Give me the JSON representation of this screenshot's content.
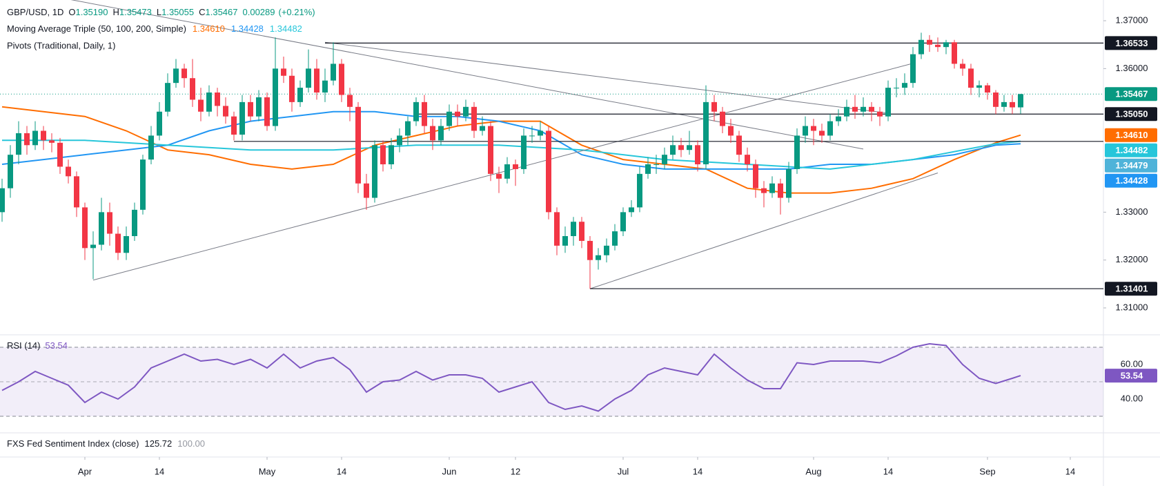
{
  "chart_data": [
    {
      "type": "candlestick",
      "legend": {
        "symbol": "GBP/USD, 1D",
        "ohlc": [
          {
            "label": "O",
            "value": "1.35190"
          },
          {
            "label": "H",
            "value": "1.35473"
          },
          {
            "label": "L",
            "value": "1.35055"
          },
          {
            "label": "C",
            "value": "1.35467"
          }
        ],
        "change": "0.00289",
        "change_pct": "(+0.21%)",
        "color": "#089981"
      },
      "up_color": "#089981",
      "down_color": "#f23645",
      "ohlc": [
        [
          1.33,
          1.337,
          1.328,
          1.335
        ],
        [
          1.335,
          1.344,
          1.333,
          1.342
        ],
        [
          1.342,
          1.349,
          1.34,
          1.3465
        ],
        [
          1.3465,
          1.348,
          1.342,
          1.344
        ],
        [
          1.344,
          1.349,
          1.343,
          1.347
        ],
        [
          1.347,
          1.348,
          1.343,
          1.345
        ],
        [
          1.345,
          1.3465,
          1.3425,
          1.3445
        ],
        [
          1.3445,
          1.3455,
          1.338,
          1.3395
        ],
        [
          1.3395,
          1.341,
          1.336,
          1.3375
        ],
        [
          1.3375,
          1.3385,
          1.329,
          1.331
        ],
        [
          1.331,
          1.332,
          1.32,
          1.3225
        ],
        [
          1.3225,
          1.326,
          1.316,
          1.3232
        ],
        [
          1.3232,
          1.333,
          1.322,
          1.33
        ],
        [
          1.33,
          1.332,
          1.323,
          1.3255
        ],
        [
          1.3255,
          1.327,
          1.32,
          1.3215
        ],
        [
          1.3215,
          1.327,
          1.32,
          1.325
        ],
        [
          1.325,
          1.332,
          1.324,
          1.3305
        ],
        [
          1.3305,
          1.342,
          1.3295,
          1.341
        ],
        [
          1.341,
          1.348,
          1.34,
          1.346
        ],
        [
          1.346,
          1.353,
          1.345,
          1.351
        ],
        [
          1.351,
          1.359,
          1.35,
          1.357
        ],
        [
          1.357,
          1.362,
          1.356,
          1.36
        ],
        [
          1.36,
          1.361,
          1.356,
          1.358
        ],
        [
          1.358,
          1.362,
          1.352,
          1.3535
        ],
        [
          1.3535,
          1.356,
          1.349,
          1.351
        ],
        [
          1.351,
          1.3565,
          1.35,
          1.355
        ],
        [
          1.355,
          1.356,
          1.35,
          1.3522
        ],
        [
          1.3522,
          1.354,
          1.3485,
          1.35
        ],
        [
          1.35,
          1.351,
          1.345,
          1.3462
        ],
        [
          1.3462,
          1.3545,
          1.345,
          1.353
        ],
        [
          1.353,
          1.3545,
          1.349,
          1.35
        ],
        [
          1.35,
          1.3555,
          1.349,
          1.354
        ],
        [
          1.354,
          1.355,
          1.347,
          1.348
        ],
        [
          1.348,
          1.3665,
          1.347,
          1.36
        ],
        [
          1.36,
          1.3625,
          1.357,
          1.3585
        ],
        [
          1.3585,
          1.36,
          1.351,
          1.353
        ],
        [
          1.353,
          1.3575,
          1.352,
          1.356
        ],
        [
          1.356,
          1.364,
          1.355,
          1.36
        ],
        [
          1.36,
          1.362,
          1.3535,
          1.355
        ],
        [
          1.355,
          1.36,
          1.353,
          1.3575
        ],
        [
          1.3575,
          1.3655,
          1.3565,
          1.361
        ],
        [
          1.361,
          1.362,
          1.353,
          1.3545
        ],
        [
          1.3545,
          1.356,
          1.349,
          1.352
        ],
        [
          1.352,
          1.353,
          1.334,
          1.336
        ],
        [
          1.336,
          1.338,
          1.3305,
          1.333
        ],
        [
          1.333,
          1.345,
          1.332,
          1.344
        ],
        [
          1.344,
          1.345,
          1.3385,
          1.34
        ],
        [
          1.34,
          1.3455,
          1.339,
          1.344
        ],
        [
          1.344,
          1.3475,
          1.3425,
          1.346
        ],
        [
          1.346,
          1.35,
          1.344,
          1.349
        ],
        [
          1.349,
          1.354,
          1.348,
          1.353
        ],
        [
          1.353,
          1.3545,
          1.3465,
          1.348
        ],
        [
          1.348,
          1.3495,
          1.343,
          1.345
        ],
        [
          1.345,
          1.3495,
          1.344,
          1.348
        ],
        [
          1.348,
          1.3525,
          1.347,
          1.351
        ],
        [
          1.351,
          1.3525,
          1.348,
          1.35
        ],
        [
          1.35,
          1.3535,
          1.349,
          1.352
        ],
        [
          1.352,
          1.353,
          1.3455,
          1.347
        ],
        [
          1.347,
          1.35,
          1.346,
          1.348
        ],
        [
          1.348,
          1.349,
          1.3365,
          1.338
        ],
        [
          1.338,
          1.3395,
          1.334,
          1.337
        ],
        [
          1.337,
          1.3415,
          1.336,
          1.34
        ],
        [
          1.34,
          1.341,
          1.3355,
          1.339
        ],
        [
          1.339,
          1.3475,
          1.338,
          1.346
        ],
        [
          1.346,
          1.348,
          1.3445,
          1.346
        ],
        [
          1.346,
          1.349,
          1.345,
          1.347
        ],
        [
          1.347,
          1.348,
          1.3285,
          1.33
        ],
        [
          1.33,
          1.331,
          1.321,
          1.323
        ],
        [
          1.323,
          1.327,
          1.3215,
          1.325
        ],
        [
          1.325,
          1.329,
          1.323,
          1.328
        ],
        [
          1.328,
          1.329,
          1.3225,
          1.324
        ],
        [
          1.324,
          1.325,
          1.314,
          1.32
        ],
        [
          1.32,
          1.3225,
          1.318,
          1.321
        ],
        [
          1.321,
          1.3245,
          1.3195,
          1.323
        ],
        [
          1.323,
          1.3275,
          1.322,
          1.326
        ],
        [
          1.326,
          1.331,
          1.325,
          1.33
        ],
        [
          1.33,
          1.3325,
          1.329,
          1.331
        ],
        [
          1.331,
          1.3395,
          1.33,
          1.338
        ],
        [
          1.338,
          1.3415,
          1.337,
          1.34
        ],
        [
          1.34,
          1.342,
          1.338,
          1.34
        ],
        [
          1.34,
          1.3435,
          1.339,
          1.342
        ],
        [
          1.342,
          1.346,
          1.341,
          1.344
        ],
        [
          1.344,
          1.3455,
          1.3415,
          1.343
        ],
        [
          1.343,
          1.347,
          1.342,
          1.344
        ],
        [
          1.344,
          1.345,
          1.3385,
          1.34
        ],
        [
          1.34,
          1.3565,
          1.339,
          1.353
        ],
        [
          1.353,
          1.3545,
          1.349,
          1.351
        ],
        [
          1.351,
          1.352,
          1.3465,
          1.348
        ],
        [
          1.348,
          1.3495,
          1.3445,
          1.346
        ],
        [
          1.346,
          1.347,
          1.3405,
          1.342
        ],
        [
          1.342,
          1.3435,
          1.3385,
          1.34
        ],
        [
          1.34,
          1.341,
          1.333,
          1.335
        ],
        [
          1.335,
          1.3365,
          1.331,
          1.334
        ],
        [
          1.334,
          1.3375,
          1.333,
          1.336
        ],
        [
          1.336,
          1.337,
          1.3295,
          1.333
        ],
        [
          1.333,
          1.3405,
          1.332,
          1.339
        ],
        [
          1.339,
          1.3475,
          1.338,
          1.346
        ],
        [
          1.346,
          1.35,
          1.3445,
          1.348
        ],
        [
          1.348,
          1.3495,
          1.344,
          1.347
        ],
        [
          1.347,
          1.3485,
          1.3445,
          1.346
        ],
        [
          1.346,
          1.3505,
          1.345,
          1.349
        ],
        [
          1.349,
          1.3515,
          1.348,
          1.35
        ],
        [
          1.35,
          1.3535,
          1.349,
          1.352
        ],
        [
          1.352,
          1.3545,
          1.3495,
          1.351
        ],
        [
          1.351,
          1.354,
          1.35,
          1.352
        ],
        [
          1.352,
          1.353,
          1.349,
          1.351
        ],
        [
          1.351,
          1.352,
          1.348,
          1.35
        ],
        [
          1.35,
          1.3575,
          1.349,
          1.356
        ],
        [
          1.356,
          1.358,
          1.354,
          1.356
        ],
        [
          1.356,
          1.359,
          1.3545,
          1.357
        ],
        [
          1.357,
          1.3645,
          1.356,
          1.363
        ],
        [
          1.363,
          1.3675,
          1.362,
          1.366
        ],
        [
          1.366,
          1.367,
          1.3635,
          1.365
        ],
        [
          1.365,
          1.3665,
          1.3635,
          1.3645
        ],
        [
          1.3645,
          1.366,
          1.363,
          1.3655
        ],
        [
          1.3655,
          1.366,
          1.36,
          1.361
        ],
        [
          1.361,
          1.362,
          1.3585,
          1.36
        ],
        [
          1.36,
          1.361,
          1.3545,
          1.356
        ],
        [
          1.356,
          1.3575,
          1.354,
          1.3565
        ],
        [
          1.3565,
          1.357,
          1.3535,
          1.355
        ],
        [
          1.355,
          1.3555,
          1.3505,
          1.352
        ],
        [
          1.352,
          1.3545,
          1.351,
          1.353
        ],
        [
          1.353,
          1.3545,
          1.3505,
          1.3519
        ],
        [
          1.3519,
          1.35473,
          1.35055,
          1.35467
        ]
      ],
      "ylim": [
        1.30452,
        1.37433
      ],
      "yticks": [
        {
          "value": 1.37,
          "label": "1.37000"
        },
        {
          "value": 1.36,
          "label": "1.36000"
        },
        {
          "value": 1.33,
          "label": "1.33000"
        },
        {
          "value": 1.32,
          "label": "1.32000"
        },
        {
          "value": 1.31,
          "label": "1.31000"
        }
      ],
      "grid": false,
      "xticks": [
        {
          "value": 10,
          "label": "Apr"
        },
        {
          "value": 19,
          "label": "14"
        },
        {
          "value": 32,
          "label": "May"
        },
        {
          "value": 41,
          "label": "14"
        },
        {
          "value": 54,
          "label": "Jun"
        },
        {
          "value": 62,
          "label": "12"
        },
        {
          "value": 75,
          "label": "Jul"
        },
        {
          "value": 84,
          "label": "14"
        },
        {
          "value": 98,
          "label": "Aug"
        },
        {
          "value": 107,
          "label": "14"
        },
        {
          "value": 119,
          "label": "Sep"
        },
        {
          "value": 129,
          "label": "14"
        }
      ],
      "moving_averages": {
        "title": "Moving Average Triple (50, 100, 200, Simple)",
        "series": [
          {
            "color": "#ff6d00",
            "value_label": "1.34610",
            "x": [
              0,
              5,
              10,
              15,
              20,
              25,
              30,
              35,
              40,
              45,
              50,
              55,
              60,
              65,
              70,
              75,
              80,
              85,
              90,
              95,
              100,
              105,
              110,
              115,
              120,
              123
            ],
            "values": [
              1.352,
              1.351,
              1.35,
              1.347,
              1.343,
              1.342,
              1.34,
              1.339,
              1.34,
              1.344,
              1.346,
              1.348,
              1.349,
              1.349,
              1.344,
              1.341,
              1.34,
              1.339,
              1.335,
              1.334,
              1.334,
              1.335,
              1.337,
              1.341,
              1.3445,
              1.3461
            ]
          },
          {
            "color": "#2196f3",
            "value_label": "1.34428",
            "x": [
              0,
              5,
              10,
              15,
              20,
              25,
              30,
              35,
              40,
              45,
              50,
              55,
              60,
              65,
              70,
              75,
              80,
              85,
              90,
              95,
              100,
              105,
              110,
              115,
              120,
              123
            ],
            "values": [
              1.34,
              1.341,
              1.342,
              1.343,
              1.344,
              1.347,
              1.349,
              1.35,
              1.351,
              1.351,
              1.35,
              1.35,
              1.349,
              1.347,
              1.342,
              1.34,
              1.339,
              1.339,
              1.339,
              1.339,
              1.34,
              1.34,
              1.341,
              1.342,
              1.344,
              1.34428
            ]
          },
          {
            "color": "#26c6da",
            "value_label": "1.34482",
            "x": [
              0,
              10,
              20,
              30,
              40,
              50,
              60,
              70,
              80,
              90,
              100,
              110,
              120,
              123
            ],
            "values": [
              1.345,
              1.345,
              1.344,
              1.343,
              1.343,
              1.344,
              1.344,
              1.343,
              1.341,
              1.34,
              1.339,
              1.341,
              1.3443,
              1.34482
            ]
          }
        ]
      },
      "pivots_title": "Pivots (Traditional, Daily, 1)",
      "trend_lines": [
        {
          "from": [
            8,
            1.3745
          ],
          "to": [
            104,
            1.3432
          ]
        },
        {
          "from": [
            39,
            1.3655
          ],
          "to": [
            107,
            1.3507
          ]
        },
        {
          "from": [
            11,
            1.3158
          ],
          "to": [
            110,
            1.3611
          ]
        },
        {
          "from": [
            71,
            1.314
          ],
          "to": [
            113,
            1.3382
          ]
        }
      ],
      "levels": [
        {
          "value": 1.36533,
          "label": "1.36533",
          "color": "#131722",
          "start": 39
        },
        {
          "value": 1.35467,
          "label": "1.35467",
          "color": "#089981",
          "dotted": true
        },
        {
          "value": 1.3505,
          "label": "1.35050",
          "color": "#131722",
          "start": 50
        },
        {
          "value": 1.3461,
          "label": "1.34610",
          "color": "#ff6d00"
        },
        {
          "value": 1.34482,
          "label": "1.34482",
          "color": "#26c6da"
        },
        {
          "value": 1.34479,
          "label": "1.34479",
          "color": "#4fb3d9",
          "start": 28
        },
        {
          "value": 1.34428,
          "label": "1.34428",
          "color": "#2196f3"
        },
        {
          "value": 1.31401,
          "label": "1.31401",
          "color": "#131722",
          "start": 71
        }
      ]
    },
    {
      "type": "line",
      "title": "RSI (14)",
      "last_value": 53.54,
      "color": "#7e57c2",
      "x": [
        0,
        2,
        4,
        6,
        8,
        10,
        12,
        14,
        16,
        18,
        20,
        22,
        24,
        26,
        28,
        30,
        32,
        34,
        36,
        38,
        40,
        42,
        44,
        46,
        48,
        50,
        52,
        54,
        56,
        58,
        60,
        62,
        64,
        66,
        68,
        70,
        72,
        74,
        76,
        78,
        80,
        82,
        84,
        86,
        88,
        90,
        92,
        94,
        96,
        98,
        100,
        102,
        104,
        106,
        108,
        110,
        112,
        114,
        116,
        118,
        120,
        122,
        123
      ],
      "values": [
        45,
        50,
        56,
        52,
        48,
        38,
        44,
        40,
        47,
        58,
        62,
        66,
        62,
        63,
        60,
        63,
        58,
        66,
        58,
        62,
        64,
        57,
        44,
        50,
        51,
        56,
        51,
        54,
        54,
        52,
        44,
        47,
        50,
        38,
        34,
        36,
        33,
        40,
        45,
        54,
        58,
        56,
        54,
        66,
        58,
        51,
        46,
        46,
        61,
        60,
        62,
        62,
        62,
        61,
        65,
        70,
        72,
        71,
        60,
        52,
        49,
        52,
        53.54
      ],
      "ylim": [
        20.8,
        76.8
      ],
      "yticks": [
        {
          "value": 60,
          "label": "60.00"
        },
        {
          "value": 40,
          "label": "40.00"
        }
      ],
      "levels": [
        70,
        50,
        30
      ]
    }
  ],
  "sentiment": {
    "title": "FXS Fed Sentiment Index (close)",
    "values": [
      "125.72",
      "100.00"
    ]
  }
}
